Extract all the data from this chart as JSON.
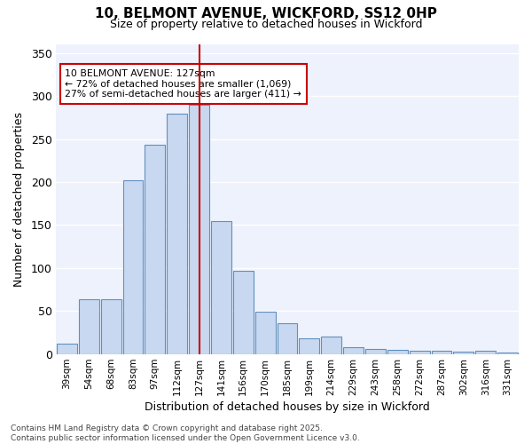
{
  "title_line1": "10, BELMONT AVENUE, WICKFORD, SS12 0HP",
  "title_line2": "Size of property relative to detached houses in Wickford",
  "xlabel": "Distribution of detached houses by size in Wickford",
  "ylabel": "Number of detached properties",
  "categories": [
    "39sqm",
    "54sqm",
    "68sqm",
    "83sqm",
    "97sqm",
    "112sqm",
    "127sqm",
    "141sqm",
    "156sqm",
    "170sqm",
    "185sqm",
    "199sqm",
    "214sqm",
    "229sqm",
    "243sqm",
    "258sqm",
    "272sqm",
    "287sqm",
    "302sqm",
    "316sqm",
    "331sqm"
  ],
  "bar_values": [
    12,
    64,
    64,
    202,
    243,
    280,
    290,
    155,
    97,
    49,
    36,
    18,
    20,
    8,
    6,
    5,
    4,
    4,
    3,
    4,
    2
  ],
  "bar_color": "#c8d8f0",
  "bar_edge_color": "#6090c0",
  "background_color": "#ffffff",
  "plot_bg_color": "#eef2fc",
  "grid_color": "#ffffff",
  "vline_x_index": 6,
  "vline_color": "#cc0000",
  "annotation_text": "10 BELMONT AVENUE: 127sqm\n← 72% of detached houses are smaller (1,069)\n27% of semi-detached houses are larger (411) →",
  "annotation_box_facecolor": "#ffffff",
  "annotation_box_edgecolor": "#cc0000",
  "ylim": [
    0,
    360
  ],
  "yticks": [
    0,
    50,
    100,
    150,
    200,
    250,
    300,
    350
  ],
  "footnote": "Contains HM Land Registry data © Crown copyright and database right 2025.\nContains public sector information licensed under the Open Government Licence v3.0."
}
